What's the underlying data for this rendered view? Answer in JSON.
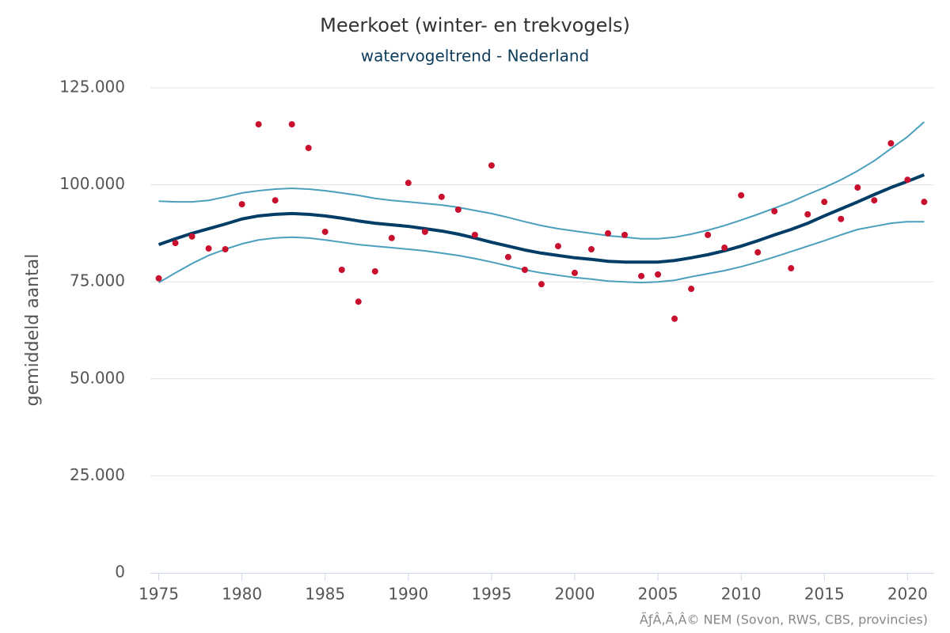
{
  "chart_data": {
    "type": "line",
    "title": "Meerkoet (winter- en trekvogels)",
    "subtitle": "watervogeltrend - Nederland",
    "y_label": "gemiddeld aantal",
    "credit": "ÃƒÂ‚Ã‚Â© NEM (Sovon, RWS, CBS, provincies)",
    "x": [
      1975,
      1976,
      1977,
      1978,
      1979,
      1980,
      1981,
      1982,
      1983,
      1984,
      1985,
      1986,
      1987,
      1988,
      1989,
      1990,
      1991,
      1992,
      1993,
      1994,
      1995,
      1996,
      1997,
      1998,
      1999,
      2000,
      2001,
      2002,
      2003,
      2004,
      2005,
      2006,
      2007,
      2008,
      2009,
      2010,
      2011,
      2012,
      2013,
      2014,
      2015,
      2016,
      2017,
      2018,
      2019,
      2020,
      2021
    ],
    "series": [
      {
        "mode": "lines",
        "color": "#4a9fbd",
        "width": 2,
        "values": [
          95800,
          95600,
          95600,
          96000,
          96900,
          97900,
          98500,
          98900,
          99100,
          98900,
          98500,
          97900,
          97300,
          96500,
          96000,
          95600,
          95200,
          94800,
          94200,
          93400,
          92600,
          91600,
          90500,
          89500,
          88700,
          88100,
          87500,
          86900,
          86500,
          86100,
          86100,
          86500,
          87300,
          88300,
          89500,
          90900,
          92400,
          94000,
          95600,
          97500,
          99300,
          101300,
          103600,
          106200,
          109300,
          112400,
          116200
        ]
      },
      {
        "mode": "lines",
        "color": "#4a9fbd",
        "width": 2,
        "values": [
          74800,
          77300,
          79700,
          81800,
          83400,
          84800,
          85800,
          86300,
          86500,
          86300,
          85800,
          85200,
          84600,
          84200,
          83800,
          83400,
          83000,
          82400,
          81800,
          81000,
          80100,
          79100,
          78100,
          77300,
          76700,
          76100,
          75700,
          75200,
          75000,
          74800,
          75000,
          75400,
          76300,
          77100,
          77900,
          78900,
          80100,
          81400,
          82800,
          84200,
          85600,
          87100,
          88500,
          89300,
          90100,
          90500,
          90500
        ]
      },
      {
        "mode": "lines",
        "color": "#003d66",
        "width": 4,
        "values": [
          84600,
          86100,
          87500,
          88700,
          89900,
          91200,
          92000,
          92400,
          92600,
          92400,
          92000,
          91400,
          90700,
          90100,
          89700,
          89300,
          88700,
          88100,
          87300,
          86300,
          85200,
          84200,
          83200,
          82400,
          81800,
          81200,
          80800,
          80300,
          80100,
          80100,
          80100,
          80500,
          81200,
          82000,
          83000,
          84200,
          85600,
          87100,
          88500,
          90100,
          92000,
          93800,
          95600,
          97500,
          99300,
          100900,
          102600
        ]
      },
      {
        "mode": "markers",
        "color": "#c8102e",
        "values": [
          75900,
          85000,
          86700,
          83600,
          83400,
          95000,
          115600,
          96000,
          115600,
          109500,
          87900,
          78100,
          69900,
          77700,
          86300,
          100500,
          87900,
          96900,
          93600,
          87100,
          105000,
          81400,
          78100,
          74400,
          84200,
          77300,
          83400,
          87500,
          87100,
          76500,
          76900,
          65500,
          73200,
          87100,
          83800,
          97300,
          82600,
          93200,
          78500,
          92400,
          95600,
          91200,
          99300,
          96000,
          110700,
          101300,
          95600
        ]
      }
    ],
    "xlim": [
      1974.5,
      2021.6
    ],
    "xticks": [
      1975,
      1980,
      1985,
      1990,
      1995,
      2000,
      2005,
      2010,
      2015,
      2020
    ],
    "ylim": [
      0,
      125000
    ],
    "yticks": [
      0,
      {
        "value": 25000,
        "label": "25.000"
      },
      {
        "value": 50000,
        "label": "50.000"
      },
      {
        "value": 75000,
        "label": "75.000"
      },
      {
        "value": 100000,
        "label": "100.000"
      },
      {
        "value": 125000,
        "label": "125.000"
      }
    ],
    "grid": true
  }
}
